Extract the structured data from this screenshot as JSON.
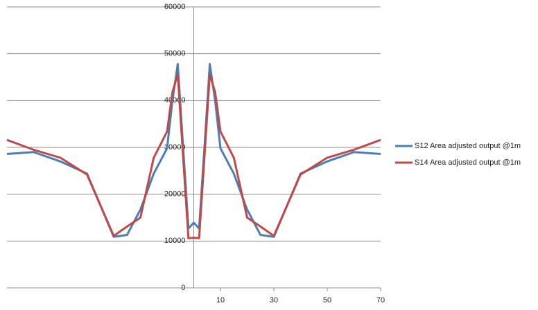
{
  "chart_data": {
    "type": "line",
    "x": [
      -70,
      -60,
      -50,
      -40,
      -30,
      -25,
      -20,
      -15,
      -10,
      -8,
      -6,
      -4,
      -2,
      0,
      2,
      4,
      6,
      8,
      10,
      15,
      20,
      25,
      30,
      40,
      50,
      60,
      70
    ],
    "series": [
      {
        "name": "S12 Area adjusted output @1m",
        "color": "#4a7ebb",
        "values": [
          28600,
          29000,
          27000,
          24400,
          10900,
          11300,
          16700,
          24400,
          29800,
          40000,
          47800,
          30000,
          12700,
          13900,
          12700,
          30000,
          47800,
          40000,
          29800,
          24400,
          16700,
          11300,
          10900,
          24400,
          27000,
          29000,
          28600
        ]
      },
      {
        "name": "S14 Area adjusted output @1m",
        "color": "#be4b48",
        "values": [
          31600,
          29500,
          27800,
          24200,
          11100,
          13100,
          15000,
          27800,
          33400,
          41800,
          45600,
          28000,
          10600,
          10700,
          10600,
          28000,
          45600,
          41800,
          33400,
          27800,
          15000,
          13100,
          11100,
          24200,
          27800,
          29500,
          31600
        ]
      }
    ],
    "xlim": [
      -70,
      70
    ],
    "xticks": [
      10,
      30,
      50,
      70
    ],
    "ylim": [
      0,
      60000
    ],
    "yticks": [
      0,
      10000,
      20000,
      30000,
      40000,
      50000,
      60000
    ],
    "grid": true,
    "legend": "right"
  }
}
